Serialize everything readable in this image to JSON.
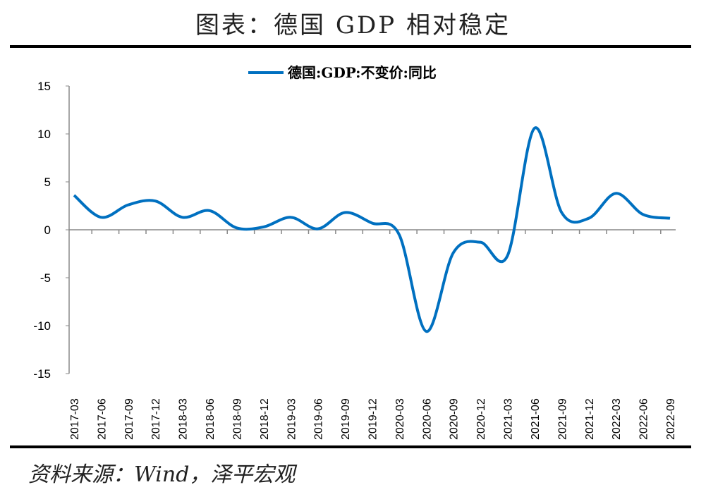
{
  "title": "图表：德国 GDP 相对稳定",
  "source": "资料来源：Wind，泽平宏观",
  "chart_data": {
    "type": "line",
    "title": "",
    "legend": "top-center",
    "series": [
      {
        "name": "德国:GDP:不变价:同比",
        "color": "#0070C0",
        "values": [
          3.6,
          1.3,
          2.6,
          3.0,
          1.3,
          2.0,
          0.2,
          0.3,
          1.3,
          0.1,
          1.8,
          0.7,
          -0.5,
          -10.6,
          -2.4,
          -1.3,
          -2.7,
          10.6,
          1.8,
          1.2,
          3.8,
          1.6,
          1.2
        ]
      }
    ],
    "categories": [
      "2017-03",
      "2017-06",
      "2017-09",
      "2017-12",
      "2018-03",
      "2018-06",
      "2018-09",
      "2018-12",
      "2019-03",
      "2019-06",
      "2019-09",
      "2019-12",
      "2020-03",
      "2020-06",
      "2020-09",
      "2020-12",
      "2021-03",
      "2021-06",
      "2021-09",
      "2021-12",
      "2022-03",
      "2022-06",
      "2022-09"
    ],
    "ylim": [
      -15,
      15
    ],
    "yticks": [
      "15",
      "10",
      "5",
      "0",
      "-5",
      "-10",
      "-15"
    ],
    "grid": false
  }
}
